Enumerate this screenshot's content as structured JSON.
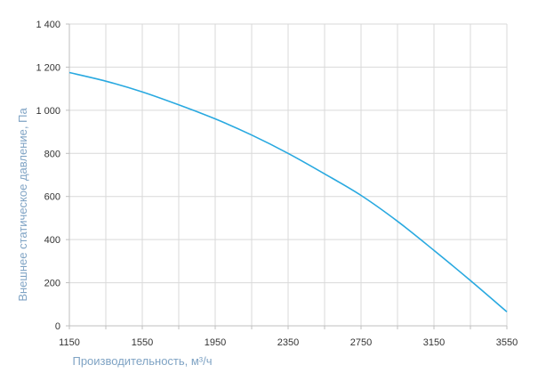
{
  "chart_data": {
    "type": "line",
    "title": "",
    "xlabel": "Производительность, м³/ч",
    "ylabel": "Внешнее статическое давление, Па",
    "xlim": [
      1150,
      3550
    ],
    "ylim": [
      0,
      1400
    ],
    "x_ticks": [
      1150,
      1550,
      1950,
      2350,
      2750,
      3150,
      3550
    ],
    "x_tick_labels": [
      "1150",
      "1550",
      "1950",
      "2350",
      "2750",
      "3150",
      "3550"
    ],
    "y_ticks": [
      0,
      200,
      400,
      600,
      800,
      1000,
      1200,
      1400
    ],
    "y_tick_labels": [
      "0",
      "200",
      "400",
      "600",
      "800",
      "1 000",
      "1 200",
      "1 400"
    ],
    "x_minor_step": 200,
    "grid": true,
    "legend": "none",
    "colors": {
      "line": "#29a9e0",
      "grid": "#d9d9d9",
      "axis": "#bfbfbf",
      "axis_title": "#7fa3c4"
    },
    "series": [
      {
        "x": [
          1150,
          1350,
          1550,
          1750,
          1950,
          2150,
          2350,
          2550,
          2750,
          2950,
          3150,
          3350,
          3550
        ],
        "values": [
          1175,
          1135,
          1085,
          1025,
          960,
          885,
          800,
          705,
          605,
          485,
          350,
          210,
          65
        ]
      }
    ]
  }
}
